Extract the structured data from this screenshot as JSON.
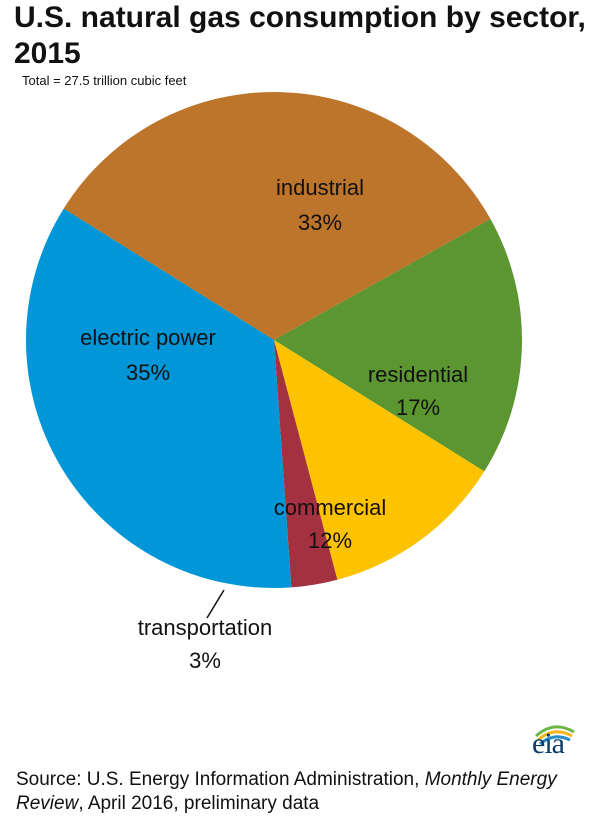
{
  "title": "U.S. natural gas consumption by sector, 2015",
  "subtitle": "Total = 27.5 trillion cubic feet",
  "chart_data": {
    "type": "pie",
    "title": "U.S. natural gas consumption by sector, 2015",
    "subtitle": "Total = 27.5 trillion cubic feet",
    "unit": "%",
    "slices": [
      {
        "name": "industrial",
        "value": 33,
        "label": "33%",
        "color": "#bd742b"
      },
      {
        "name": "residential",
        "value": 17,
        "label": "17%",
        "color": "#5c9630"
      },
      {
        "name": "commercial",
        "value": 12,
        "label": "12%",
        "color": "#fec300"
      },
      {
        "name": "transportation",
        "value": 3,
        "label": "3%",
        "color": "#a3313f"
      },
      {
        "name": "electric power",
        "value": 35,
        "label": "35%",
        "color": "#0096d7"
      }
    ]
  },
  "logo": {
    "text": "eia",
    "icon": "eia-logo-icon"
  },
  "source": {
    "prefix": "Source: U.S. Energy Information Administration, ",
    "publication": "Monthly Energy Review",
    "suffix": ", April 2016, preliminary data"
  }
}
